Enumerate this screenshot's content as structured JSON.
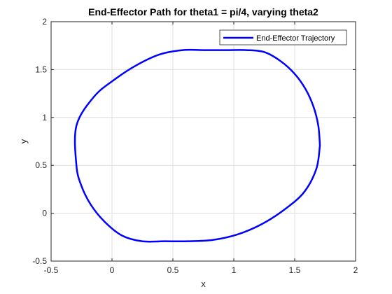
{
  "chart_data": {
    "type": "line",
    "title": "End-Effector Path for theta1 = pi/4, varying theta2",
    "xlabel": "x",
    "ylabel": "y",
    "xlim": [
      -0.5,
      2
    ],
    "ylim": [
      -0.5,
      2
    ],
    "xticks": [
      -0.5,
      0,
      0.5,
      1,
      1.5,
      2
    ],
    "yticks": [
      -0.5,
      0,
      0.5,
      1,
      1.5,
      2
    ],
    "xtick_labels": [
      "-0.5",
      "0",
      "0.5",
      "1",
      "1.5",
      "2"
    ],
    "ytick_labels": [
      "-0.5",
      "0",
      "0.5",
      "1",
      "1.5",
      "2"
    ],
    "grid": true,
    "legend_position": "top-right",
    "series": [
      {
        "name": "End-Effector Trajectory",
        "color": "#0000ff",
        "x": [
          1.7071,
          1.6937,
          1.6537,
          1.5881,
          1.4981,
          1.3857,
          1.2531,
          1.1031,
          0.9387,
          0.7634,
          0.5808,
          0.3945,
          0.2085,
          0.0266,
          -0.1474,
          -0.2921,
          -0.2921,
          -0.251,
          -0.1723,
          -0.0601,
          0.0808,
          0.2458,
          0.429,
          0.6249,
          0.8274,
          1.0299,
          1.2262,
          1.4101,
          1.5757,
          1.6775,
          1.7071
        ],
        "y": [
          0.7071,
          0.9152,
          1.1149,
          1.2981,
          1.4576,
          1.5873,
          1.6817,
          1.7034,
          1.7034,
          1.7034,
          1.7034,
          1.6595,
          1.5508,
          1.4014,
          1.2174,
          0.9144,
          0.4998,
          0.2851,
          0.0857,
          -0.0898,
          -0.2321,
          -0.2929,
          -0.2929,
          -0.2929,
          -0.279,
          -0.2217,
          -0.1161,
          0.0327,
          0.2179,
          0.4623,
          0.7071
        ]
      }
    ]
  }
}
